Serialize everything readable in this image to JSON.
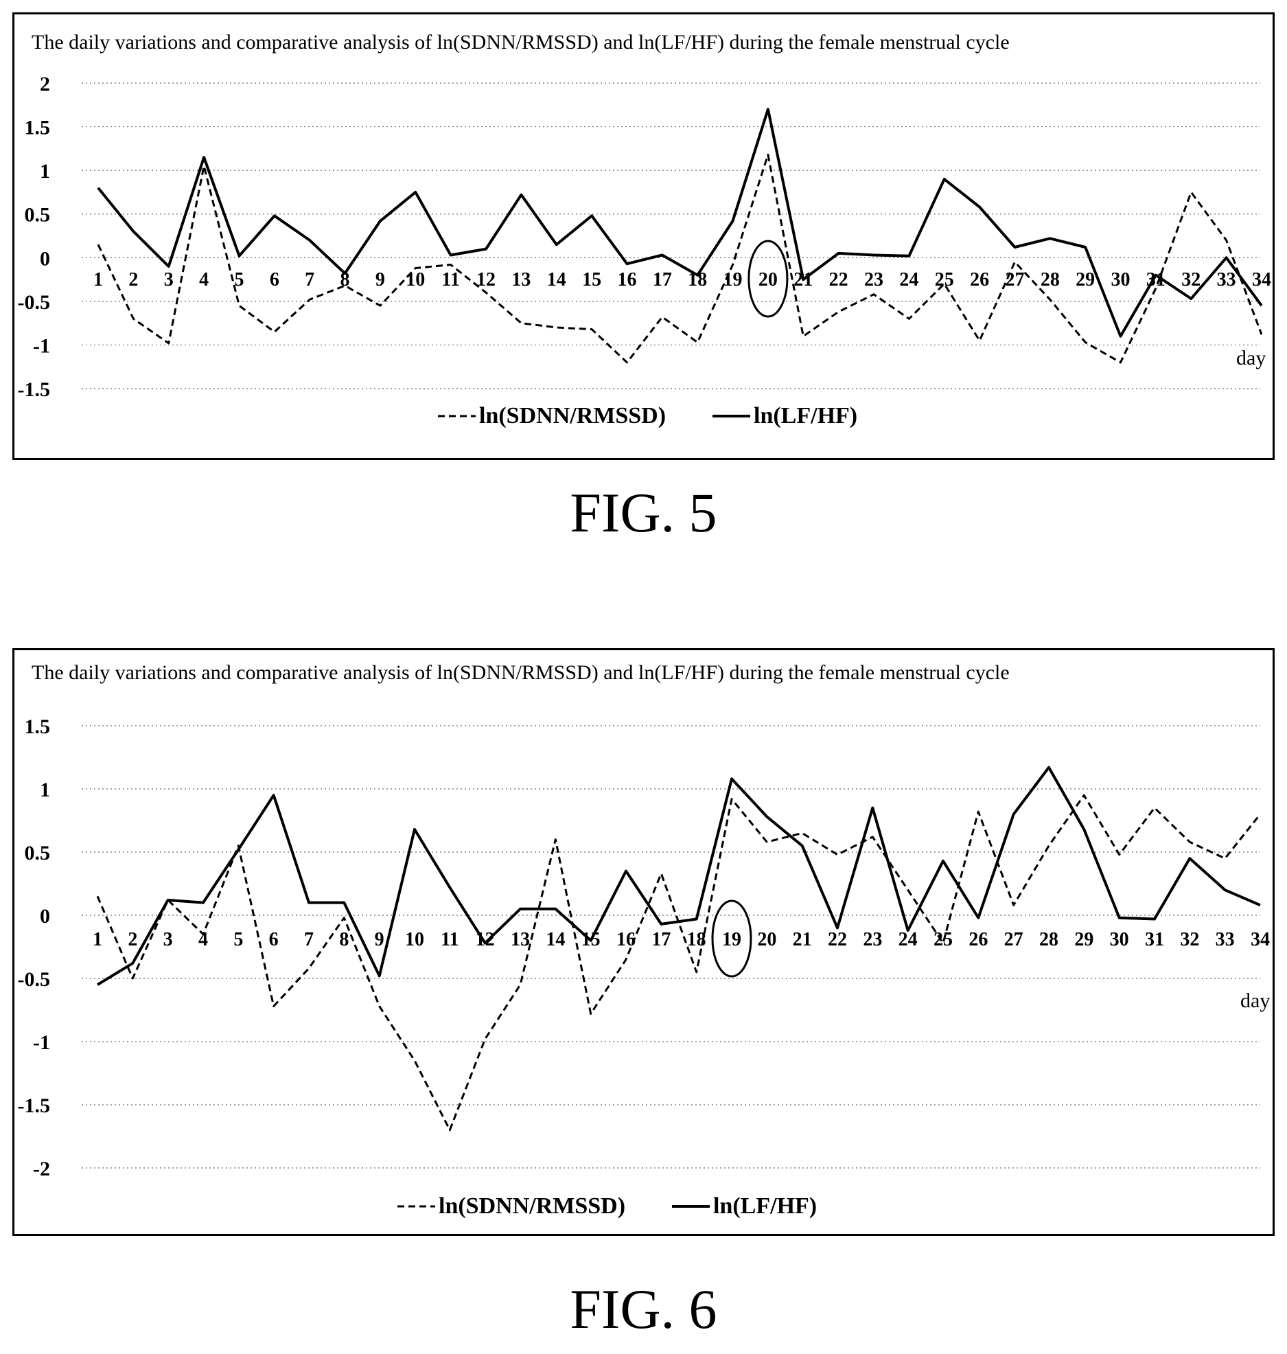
{
  "figures": [
    {
      "label": "FIG. 5",
      "chart_data": {
        "type": "line",
        "title": "The daily variations and comparative analysis of ln(SDNN/RMSSD) and ln(LF/HF) during the female menstrual cycle",
        "xlabel": "day",
        "ylabel": "",
        "categories": [
          "1",
          "2",
          "3",
          "4",
          "5",
          "6",
          "7",
          "8",
          "9",
          "10",
          "11",
          "12",
          "13",
          "14",
          "15",
          "16",
          "17",
          "18",
          "19",
          "20",
          "21",
          "22",
          "23",
          "24",
          "25",
          "26",
          "27",
          "28",
          "29",
          "30",
          "31",
          "32",
          "33",
          "34"
        ],
        "yticks": [
          "2",
          "1.5",
          "1",
          "0.5",
          "0",
          "-0.5",
          "-1",
          "-1.5"
        ],
        "ylim": [
          -1.5,
          2
        ],
        "grid": true,
        "legend_position": "bottom",
        "highlight_day": "20",
        "series": [
          {
            "name": "ln(SDNN/RMSSD)",
            "style": "dashed",
            "values": [
              0.15,
              -0.7,
              -0.98,
              1.05,
              -0.55,
              -0.85,
              -0.48,
              -0.32,
              -0.55,
              -0.12,
              -0.08,
              -0.4,
              -0.75,
              -0.8,
              -0.82,
              -1.2,
              -0.68,
              -0.97,
              -0.08,
              1.18,
              -0.9,
              -0.62,
              -0.42,
              -0.7,
              -0.3,
              -0.95,
              -0.05,
              -0.48,
              -0.97,
              -1.2,
              -0.35,
              0.75,
              0.2,
              -0.88
            ]
          },
          {
            "name": "ln(LF/HF)",
            "style": "solid",
            "values": [
              0.8,
              0.3,
              -0.1,
              1.15,
              0.02,
              0.48,
              0.2,
              -0.18,
              0.42,
              0.75,
              0.03,
              0.1,
              0.72,
              0.15,
              0.48,
              -0.07,
              0.03,
              -0.2,
              0.42,
              1.7,
              -0.25,
              0.05,
              0.03,
              0.02,
              0.9,
              0.58,
              0.12,
              0.22,
              0.12,
              -0.9,
              -0.2,
              -0.47,
              0.0,
              -0.55
            ]
          }
        ]
      }
    },
    {
      "label": "FIG. 6",
      "chart_data": {
        "type": "line",
        "title": "The daily variations and comparative analysis of ln(SDNN/RMSSD) and ln(LF/HF) during the female menstrual cycle",
        "xlabel": "day",
        "ylabel": "",
        "categories": [
          "1",
          "2",
          "3",
          "4",
          "5",
          "6",
          "7",
          "8",
          "9",
          "10",
          "11",
          "12",
          "13",
          "14",
          "15",
          "16",
          "17",
          "18",
          "19",
          "20",
          "21",
          "22",
          "23",
          "24",
          "25",
          "26",
          "27",
          "28",
          "29",
          "30",
          "31",
          "32",
          "33",
          "34"
        ],
        "yticks": [
          "1.5",
          "1",
          "0.5",
          "0",
          "-0.5",
          "-1",
          "-1.5",
          "-2"
        ],
        "ylim": [
          -2,
          1.5
        ],
        "grid": true,
        "legend_position": "bottom",
        "highlight_day": "19",
        "series": [
          {
            "name": "ln(SDNN/RMSSD)",
            "style": "dashed",
            "values": [
              0.15,
              -0.5,
              0.12,
              -0.15,
              0.55,
              -0.72,
              -0.42,
              -0.02,
              -0.72,
              -1.15,
              -1.7,
              -0.98,
              -0.55,
              0.6,
              -0.78,
              -0.35,
              0.33,
              -0.45,
              0.92,
              0.58,
              0.65,
              0.48,
              0.62,
              0.2,
              -0.22,
              0.82,
              0.08,
              0.55,
              0.95,
              0.48,
              0.85,
              0.58,
              0.45,
              0.8
            ]
          },
          {
            "name": "ln(LF/HF)",
            "style": "solid",
            "values": [
              -0.55,
              -0.38,
              0.12,
              0.1,
              0.52,
              0.95,
              0.1,
              0.1,
              -0.48,
              0.68,
              0.22,
              -0.22,
              0.05,
              0.05,
              -0.2,
              0.35,
              -0.07,
              -0.03,
              1.08,
              0.78,
              0.55,
              -0.1,
              0.85,
              -0.12,
              0.43,
              -0.02,
              0.8,
              1.17,
              0.68,
              -0.02,
              -0.03,
              0.45,
              0.2,
              0.08
            ]
          }
        ]
      }
    }
  ]
}
